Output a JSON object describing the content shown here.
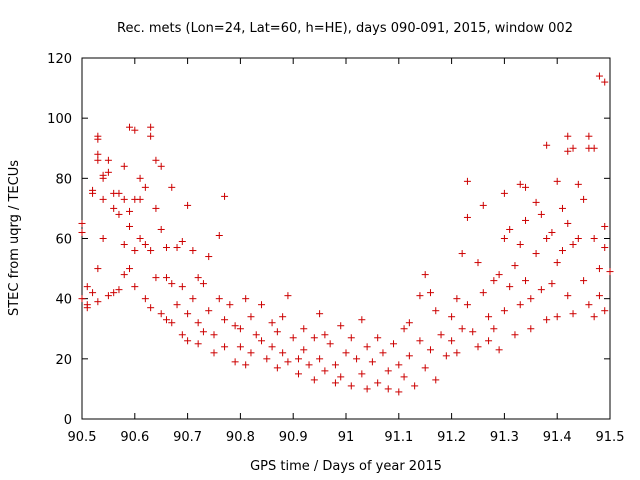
{
  "chart_data": {
    "type": "scatter",
    "title": "Rec. mets (Lon=24, Lat=60, h=HE), days 090-091, 2015, window 002",
    "xlabel": "GPS time / Days of year 2015",
    "ylabel": "STEC from uqrg / TECUs",
    "xlim": [
      90.5,
      91.5
    ],
    "ylim": [
      0,
      120
    ],
    "xticks": [
      "90.5",
      "90.6",
      "90.7",
      "90.8",
      "90.9",
      "91",
      "91.1",
      "91.2",
      "91.3",
      "91.4",
      "91.5"
    ],
    "yticks": [
      "0",
      "20",
      "40",
      "60",
      "80",
      "100",
      "120"
    ],
    "grid": false,
    "legend": "none",
    "marker": "+",
    "color": "#cc0000",
    "series": [
      {
        "points": [
          [
            90.5,
            65
          ],
          [
            90.5,
            62
          ],
          [
            90.5,
            40
          ],
          [
            90.51,
            38
          ],
          [
            90.51,
            44
          ],
          [
            90.51,
            37
          ],
          [
            90.52,
            76
          ],
          [
            90.52,
            75
          ],
          [
            90.52,
            42
          ],
          [
            90.53,
            94
          ],
          [
            90.53,
            93
          ],
          [
            90.53,
            88
          ],
          [
            90.53,
            86
          ],
          [
            90.53,
            50
          ],
          [
            90.53,
            39
          ],
          [
            90.54,
            81
          ],
          [
            90.54,
            80
          ],
          [
            90.54,
            73
          ],
          [
            90.54,
            60
          ],
          [
            90.55,
            86
          ],
          [
            90.55,
            82
          ],
          [
            90.55,
            41
          ],
          [
            90.56,
            75
          ],
          [
            90.56,
            70
          ],
          [
            90.56,
            42
          ],
          [
            90.57,
            75
          ],
          [
            90.57,
            68
          ],
          [
            90.57,
            43
          ],
          [
            90.58,
            84
          ],
          [
            90.58,
            73
          ],
          [
            90.58,
            58
          ],
          [
            90.58,
            48
          ],
          [
            90.59,
            97
          ],
          [
            90.59,
            69
          ],
          [
            90.59,
            64
          ],
          [
            90.59,
            50
          ],
          [
            90.6,
            96
          ],
          [
            90.6,
            73
          ],
          [
            90.6,
            56
          ],
          [
            90.6,
            44
          ],
          [
            90.61,
            80
          ],
          [
            90.61,
            73
          ],
          [
            90.61,
            60
          ],
          [
            90.62,
            77
          ],
          [
            90.62,
            58
          ],
          [
            90.62,
            40
          ],
          [
            90.63,
            97
          ],
          [
            90.63,
            94
          ],
          [
            90.63,
            56
          ],
          [
            90.63,
            37
          ],
          [
            90.64,
            86
          ],
          [
            90.64,
            70
          ],
          [
            90.64,
            47
          ],
          [
            90.65,
            84
          ],
          [
            90.65,
            63
          ],
          [
            90.65,
            35
          ],
          [
            90.66,
            57
          ],
          [
            90.66,
            47
          ],
          [
            90.66,
            33
          ],
          [
            90.67,
            77
          ],
          [
            90.67,
            45
          ],
          [
            90.67,
            32
          ],
          [
            90.68,
            57
          ],
          [
            90.68,
            38
          ],
          [
            90.69,
            59
          ],
          [
            90.69,
            44
          ],
          [
            90.69,
            28
          ],
          [
            90.7,
            71
          ],
          [
            90.7,
            35
          ],
          [
            90.7,
            26
          ],
          [
            90.71,
            56
          ],
          [
            90.71,
            40
          ],
          [
            90.72,
            47
          ],
          [
            90.72,
            32
          ],
          [
            90.72,
            25
          ],
          [
            90.73,
            45
          ],
          [
            90.73,
            29
          ],
          [
            90.74,
            54
          ],
          [
            90.74,
            36
          ],
          [
            90.75,
            28
          ],
          [
            90.75,
            22
          ],
          [
            90.76,
            61
          ],
          [
            90.76,
            40
          ],
          [
            90.77,
            74
          ],
          [
            90.77,
            33
          ],
          [
            90.77,
            24
          ],
          [
            90.78,
            38
          ],
          [
            90.79,
            31
          ],
          [
            90.79,
            19
          ],
          [
            90.8,
            30
          ],
          [
            90.8,
            24
          ],
          [
            90.81,
            40
          ],
          [
            90.81,
            18
          ],
          [
            90.82,
            34
          ],
          [
            90.82,
            22
          ],
          [
            90.83,
            28
          ],
          [
            90.84,
            38
          ],
          [
            90.84,
            26
          ],
          [
            90.85,
            20
          ],
          [
            90.86,
            32
          ],
          [
            90.86,
            24
          ],
          [
            90.87,
            29
          ],
          [
            90.87,
            17
          ],
          [
            90.88,
            34
          ],
          [
            90.88,
            22
          ],
          [
            90.89,
            41
          ],
          [
            90.89,
            19
          ],
          [
            90.9,
            27
          ],
          [
            90.91,
            20
          ],
          [
            90.91,
            15
          ],
          [
            90.92,
            30
          ],
          [
            90.92,
            23
          ],
          [
            90.93,
            18
          ],
          [
            90.94,
            27
          ],
          [
            90.94,
            13
          ],
          [
            90.95,
            35
          ],
          [
            90.95,
            20
          ],
          [
            90.96,
            28
          ],
          [
            90.96,
            16
          ],
          [
            90.97,
            25
          ],
          [
            90.98,
            18
          ],
          [
            90.98,
            12
          ],
          [
            90.99,
            31
          ],
          [
            90.99,
            14
          ],
          [
            91.0,
            22
          ],
          [
            91.01,
            27
          ],
          [
            91.01,
            11
          ],
          [
            91.02,
            20
          ],
          [
            91.03,
            33
          ],
          [
            91.03,
            15
          ],
          [
            91.04,
            24
          ],
          [
            91.04,
            10
          ],
          [
            91.05,
            19
          ],
          [
            91.06,
            27
          ],
          [
            91.06,
            12
          ],
          [
            91.07,
            22
          ],
          [
            91.08,
            16
          ],
          [
            91.08,
            10
          ],
          [
            91.09,
            25
          ],
          [
            91.1,
            18
          ],
          [
            91.1,
            9
          ],
          [
            91.11,
            30
          ],
          [
            91.11,
            14
          ],
          [
            91.12,
            32
          ],
          [
            91.12,
            21
          ],
          [
            91.13,
            11
          ],
          [
            91.14,
            41
          ],
          [
            91.14,
            26
          ],
          [
            91.15,
            48
          ],
          [
            91.15,
            17
          ],
          [
            91.16,
            42
          ],
          [
            91.16,
            23
          ],
          [
            91.17,
            36
          ],
          [
            91.17,
            13
          ],
          [
            91.18,
            28
          ],
          [
            91.19,
            21
          ],
          [
            91.2,
            34
          ],
          [
            91.2,
            26
          ],
          [
            91.21,
            40
          ],
          [
            91.21,
            22
          ],
          [
            91.22,
            55
          ],
          [
            91.22,
            30
          ],
          [
            91.23,
            79
          ],
          [
            91.23,
            67
          ],
          [
            91.23,
            38
          ],
          [
            91.24,
            29
          ],
          [
            91.25,
            52
          ],
          [
            91.25,
            24
          ],
          [
            91.26,
            71
          ],
          [
            91.26,
            42
          ],
          [
            91.27,
            34
          ],
          [
            91.27,
            26
          ],
          [
            91.28,
            46
          ],
          [
            91.28,
            30
          ],
          [
            91.29,
            48
          ],
          [
            91.29,
            23
          ],
          [
            91.3,
            75
          ],
          [
            91.3,
            60
          ],
          [
            91.3,
            36
          ],
          [
            91.31,
            63
          ],
          [
            91.31,
            44
          ],
          [
            91.32,
            51
          ],
          [
            91.32,
            28
          ],
          [
            91.33,
            78
          ],
          [
            91.33,
            58
          ],
          [
            91.33,
            38
          ],
          [
            91.34,
            77
          ],
          [
            91.34,
            66
          ],
          [
            91.34,
            46
          ],
          [
            91.35,
            40
          ],
          [
            91.35,
            30
          ],
          [
            91.36,
            72
          ],
          [
            91.36,
            55
          ],
          [
            91.37,
            68
          ],
          [
            91.37,
            43
          ],
          [
            91.38,
            91
          ],
          [
            91.38,
            60
          ],
          [
            91.38,
            33
          ],
          [
            91.39,
            62
          ],
          [
            91.39,
            45
          ],
          [
            91.4,
            79
          ],
          [
            91.4,
            52
          ],
          [
            91.4,
            34
          ],
          [
            91.41,
            70
          ],
          [
            91.41,
            56
          ],
          [
            91.42,
            94
          ],
          [
            91.42,
            89
          ],
          [
            91.42,
            65
          ],
          [
            91.42,
            41
          ],
          [
            91.43,
            90
          ],
          [
            91.43,
            58
          ],
          [
            91.43,
            35
          ],
          [
            91.44,
            78
          ],
          [
            91.44,
            60
          ],
          [
            91.45,
            73
          ],
          [
            91.45,
            46
          ],
          [
            91.46,
            94
          ],
          [
            91.46,
            90
          ],
          [
            91.46,
            38
          ],
          [
            91.47,
            90
          ],
          [
            91.47,
            60
          ],
          [
            91.47,
            34
          ],
          [
            91.48,
            114
          ],
          [
            91.48,
            50
          ],
          [
            91.48,
            41
          ],
          [
            91.49,
            112
          ],
          [
            91.49,
            64
          ],
          [
            91.49,
            57
          ],
          [
            91.49,
            36
          ],
          [
            91.5,
            49
          ]
        ]
      }
    ]
  }
}
